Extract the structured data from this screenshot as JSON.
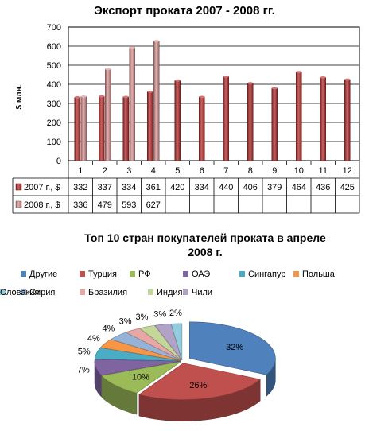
{
  "chart_data": [
    {
      "type": "bar",
      "title": "Экспорт проката 2007 - 2008 гг.",
      "ylabel": "$ млн.",
      "xlabel": "",
      "ylim": [
        0,
        700
      ],
      "yticks": [
        0,
        100,
        200,
        300,
        400,
        500,
        600,
        700
      ],
      "grid": true,
      "categories": [
        "1",
        "2",
        "3",
        "4",
        "5",
        "6",
        "7",
        "8",
        "9",
        "10",
        "11",
        "12"
      ],
      "series": [
        {
          "name": "2007 г., $",
          "color": "#b72f2f",
          "values": [
            332,
            337,
            334,
            361,
            420,
            334,
            440,
            406,
            379,
            464,
            436,
            425
          ]
        },
        {
          "name": "2008 г., $",
          "color": "#d99594",
          "values": [
            336,
            479,
            593,
            627,
            null,
            null,
            null,
            null,
            null,
            null,
            null,
            null
          ]
        }
      ],
      "data_table": true
    },
    {
      "type": "pie",
      "title": "Топ 10 стран покупателей проката в апреле 2008 г.",
      "legend_placement": "top",
      "slices": [
        {
          "name": "Другие",
          "value": 32,
          "label": "32%",
          "color": "#4f81bd"
        },
        {
          "name": "Турция",
          "value": 26,
          "label": "26%",
          "color": "#c0504d"
        },
        {
          "name": "РФ",
          "value": 10,
          "label": "10%",
          "color": "#9bbb59"
        },
        {
          "name": "ОАЭ",
          "value": 7,
          "label": "7%",
          "color": "#8064a2"
        },
        {
          "name": "Сингапур",
          "value": 5,
          "label": "5%",
          "color": "#4bacc6"
        },
        {
          "name": "Польша",
          "value": 4,
          "label": "4%",
          "color": "#f79646"
        },
        {
          "name": "Сирия",
          "value": 4,
          "label": "4%",
          "color": "#95b3d7"
        },
        {
          "name": "Бразилия",
          "value": 3,
          "label": "3%",
          "color": "#e6a7a5"
        },
        {
          "name": "Индия",
          "value": 3,
          "label": "3%",
          "color": "#c4d79b"
        },
        {
          "name": "Чили",
          "value": 3,
          "label": "3%",
          "color": "#b3a2c7"
        },
        {
          "name": "Словакия",
          "value": 2,
          "label": "2%",
          "color": "#93cddd"
        }
      ]
    }
  ]
}
